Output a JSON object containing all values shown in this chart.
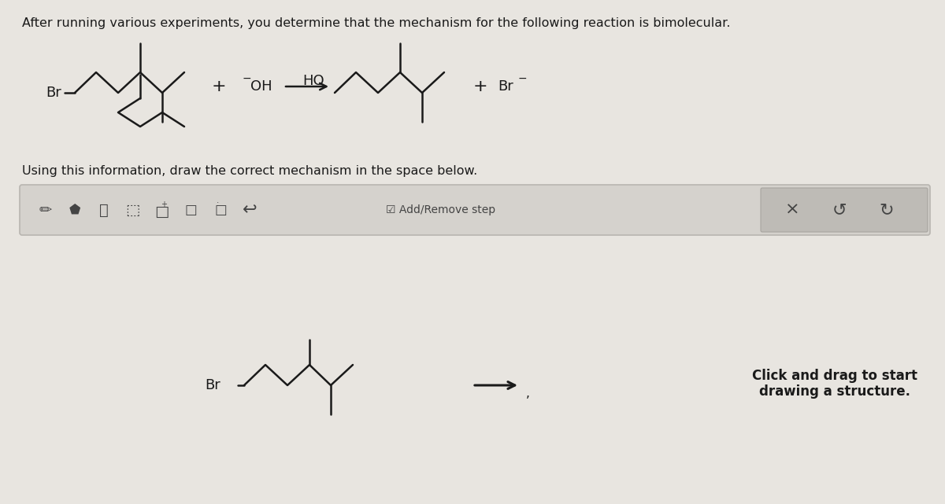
{
  "bg_color": "#e8e5e0",
  "toolbar_bg": "#d8d5d0",
  "toolbar_right_bg": "#c8c5c0",
  "title_text": "After running various experiments, you determine that the mechanism for the following reaction is bimolecular.",
  "subtitle_text": "Using this information, draw the correct mechanism in the space below.",
  "bottom_label": "Click and drag to start\ndrawing a structure.",
  "text_color": "#1a1a1a",
  "molecule_color": "#1a1a1a",
  "icon_color": "#444444",
  "title_fontsize": 11.5,
  "subtitle_fontsize": 11.5,
  "mol_lw": 1.8
}
